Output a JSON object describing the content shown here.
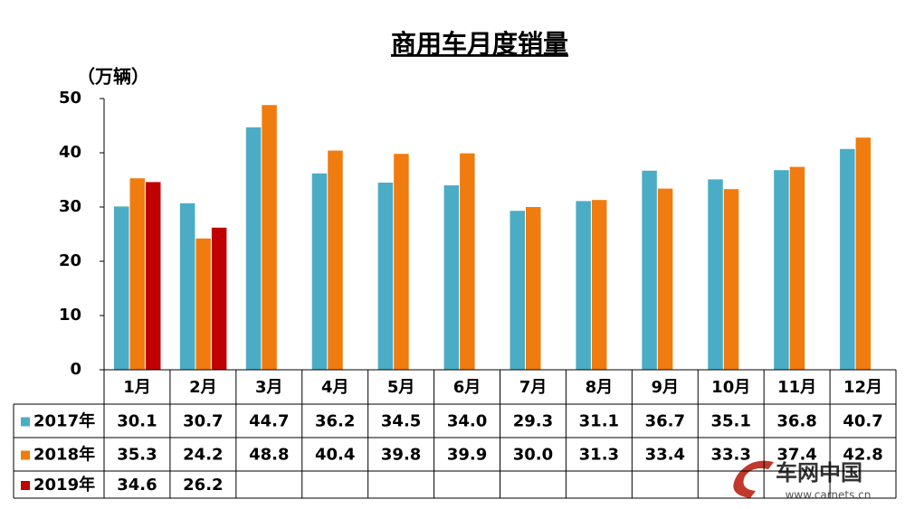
{
  "chart_data": {
    "type": "bar",
    "title": "商用车月度销量",
    "y_label": "（万辆）",
    "categories": [
      "1月",
      "2月",
      "3月",
      "4月",
      "5月",
      "6月",
      "7月",
      "8月",
      "9月",
      "10月",
      "11月",
      "12月"
    ],
    "series": [
      {
        "name": "2017年",
        "color": "#4bacc6",
        "values": [
          30.1,
          30.7,
          44.7,
          36.2,
          34.5,
          34.0,
          29.3,
          31.1,
          36.7,
          35.1,
          36.8,
          40.7
        ],
        "value_labels": [
          "30.1",
          "30.7",
          "44.7",
          "36.2",
          "34.5",
          "34.0",
          "29.3",
          "31.1",
          "36.7",
          "35.1",
          "36.8",
          "40.7"
        ]
      },
      {
        "name": "2018年",
        "color": "#f07b0e",
        "values": [
          35.3,
          24.2,
          48.8,
          40.4,
          39.8,
          39.9,
          30.0,
          31.3,
          33.4,
          33.3,
          37.4,
          42.8
        ],
        "value_labels": [
          "35.3",
          "24.2",
          "48.8",
          "40.4",
          "39.8",
          "39.9",
          "30.0",
          "31.3",
          "33.4",
          "33.3",
          "37.4",
          "42.8"
        ]
      },
      {
        "name": "2019年",
        "color": "#c00000",
        "values": [
          34.6,
          26.2,
          null,
          null,
          null,
          null,
          null,
          null,
          null,
          null,
          null,
          null
        ],
        "value_labels": [
          "34.6",
          "26.2",
          null,
          null,
          null,
          null,
          null,
          null,
          null,
          null,
          null,
          null
        ]
      }
    ],
    "ylim": [
      0,
      50
    ],
    "yticks": [
      0,
      10,
      20,
      30,
      40,
      50
    ],
    "grid": false,
    "watermark": {
      "brand": "车网中国",
      "url": "www.carnets.cn"
    }
  }
}
